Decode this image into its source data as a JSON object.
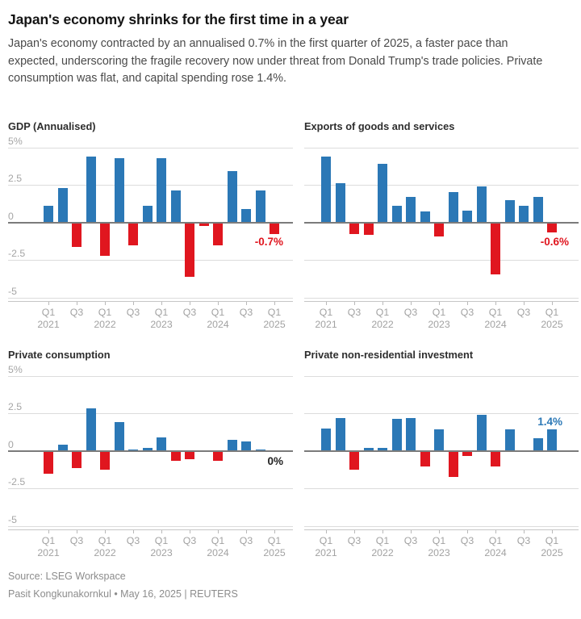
{
  "header": {
    "title": "Japan's economy shrinks for the first time in a year",
    "subtitle": "Japan's economy contracted by an annualised 0.7% in the first quarter of 2025, a faster pace than expected, underscoring the fragile recovery now under threat from Donald Trump's trade policies. Private consumption was flat, and capital spending rose 1.4%."
  },
  "charts_shared": {
    "categories": [
      "Q1 2021",
      "Q2 2021",
      "Q3 2021",
      "Q4 2021",
      "Q1 2022",
      "Q2 2022",
      "Q3 2022",
      "Q4 2022",
      "Q1 2023",
      "Q2 2023",
      "Q3 2023",
      "Q4 2023",
      "Q1 2024",
      "Q2 2024",
      "Q3 2024",
      "Q4 2024",
      "Q1 2025"
    ],
    "unit": "%",
    "x_tick_labels": [
      {
        "q": "Q1",
        "year": "2021"
      },
      {
        "q": "Q3",
        "year": ""
      },
      {
        "q": "Q1",
        "year": "2022"
      },
      {
        "q": "Q3",
        "year": ""
      },
      {
        "q": "Q1",
        "year": "2023"
      },
      {
        "q": "Q3",
        "year": ""
      },
      {
        "q": "Q1",
        "year": "2024"
      },
      {
        "q": "Q3",
        "year": ""
      },
      {
        "q": "Q1",
        "year": "2025"
      }
    ],
    "y_tick_labels": [
      "5%",
      "2.5",
      "0",
      "-2.5",
      "-5"
    ],
    "y_tick_values": [
      5,
      2.5,
      0,
      -2.5,
      -5
    ],
    "ylim": [
      -5.5,
      5.5
    ],
    "grid": true,
    "legend_position": "none",
    "bar_color_positive": "#2b78b6",
    "bar_color_negative": "#e0161f"
  },
  "chart_data": [
    {
      "type": "bar",
      "title": "GDP (Annualised)",
      "values": [
        1.1,
        2.3,
        -1.6,
        4.4,
        -2.2,
        4.3,
        -1.5,
        1.1,
        4.3,
        2.1,
        -3.6,
        -0.2,
        -1.5,
        3.4,
        0.9,
        2.1,
        -0.7
      ],
      "annotation": {
        "text": "-0.7%",
        "role": "negative",
        "position": "below-end"
      },
      "y_labels_visible": true
    },
    {
      "type": "bar",
      "title": "Exports of goods and services",
      "values": [
        4.4,
        2.6,
        -0.7,
        -0.8,
        3.9,
        1.1,
        1.7,
        0.7,
        -0.9,
        2.0,
        0.8,
        2.4,
        -3.4,
        1.5,
        1.1,
        1.7,
        -0.6
      ],
      "annotation": {
        "text": "-0.6%",
        "role": "negative",
        "position": "below-end"
      },
      "y_labels_visible": false
    },
    {
      "type": "bar",
      "title": "Private consumption",
      "values": [
        -1.5,
        0.4,
        -1.1,
        2.8,
        -1.2,
        1.9,
        0.1,
        0.2,
        0.9,
        -0.6,
        -0.5,
        0.0,
        -0.6,
        0.75,
        0.6,
        0.1,
        0.0
      ],
      "annotation": {
        "text": "0%",
        "role": "neutral",
        "position": "zero-end"
      },
      "y_labels_visible": true
    },
    {
      "type": "bar",
      "title": "Private non-residential investment",
      "values": [
        1.5,
        2.2,
        -1.2,
        0.2,
        0.2,
        2.1,
        2.2,
        -1.0,
        1.4,
        -1.7,
        -0.3,
        2.4,
        -1.0,
        1.4,
        0.05,
        0.85,
        1.4
      ],
      "annotation": {
        "text": "1.4%",
        "role": "positive",
        "position": "above-end"
      },
      "y_labels_visible": false
    }
  ],
  "footer": {
    "source": "Source: LSEG Workspace",
    "byline": "Pasit Kongkunakornkul • May 16, 2025 | REUTERS"
  }
}
